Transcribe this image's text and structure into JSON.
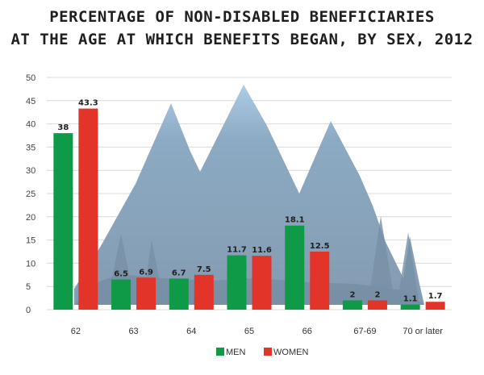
{
  "title_line1": "PERCENTAGE OF NON-DISABLED BENEFICIARIES",
  "title_line2": "AT THE AGE AT WHICH BENEFITS BEGAN, BY SEX, 2012",
  "chart_data": {
    "type": "bar",
    "title": "PERCENTAGE OF NON-DISABLED BENEFICIARIES AT THE AGE AT WHICH BENEFITS BEGAN, BY SEX, 2012",
    "categories": [
      "62",
      "63",
      "64",
      "65",
      "66",
      "67-69",
      "70 or later"
    ],
    "series": [
      {
        "name": "MEN",
        "color": "#0e9a47",
        "values": [
          38,
          6.5,
          6.7,
          11.7,
          18.1,
          2,
          1.1
        ],
        "labels": [
          "38",
          "6.5",
          "6.7",
          "11.7",
          "18.1",
          "2",
          "1.1"
        ]
      },
      {
        "name": "WOMEN",
        "color": "#e3342a",
        "values": [
          43.3,
          6.9,
          7.5,
          11.6,
          12.5,
          2,
          1.7
        ],
        "labels": [
          "43.3",
          "6.9",
          "7.5",
          "11.6",
          "12.5",
          "2",
          "1.7"
        ]
      }
    ],
    "yticks": [
      0,
      5,
      10,
      15,
      20,
      25,
      30,
      35,
      40,
      45,
      50
    ],
    "ylim": [
      0,
      50
    ],
    "grid": true,
    "legend_position": "bottom-center",
    "xlabel": "",
    "ylabel": ""
  }
}
